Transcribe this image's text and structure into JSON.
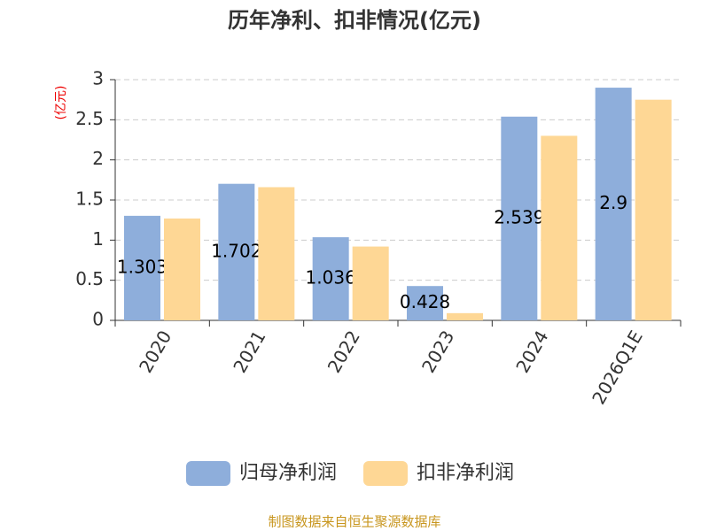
{
  "chart_data": {
    "type": "bar",
    "title": "历年净利、扣非情况(亿元)",
    "y_label": "(亿元)",
    "categories": [
      "2020",
      "2021",
      "2022",
      "2023",
      "2024",
      "2026Q1E"
    ],
    "series": [
      {
        "name": "归母净利润",
        "color": "#8eaedb",
        "values": [
          1.303,
          1.702,
          1.036,
          0.428,
          2.539,
          2.9
        ]
      },
      {
        "name": "扣非净利润",
        "color": "#fed795",
        "values": [
          1.27,
          1.66,
          0.92,
          0.09,
          2.3,
          2.75
        ]
      }
    ],
    "ylim": [
      0,
      3
    ],
    "yticks": [
      0,
      0.5,
      1,
      1.5,
      2,
      2.5,
      3
    ],
    "grid": true,
    "source": "制图数据来自恒生聚源数据库"
  }
}
